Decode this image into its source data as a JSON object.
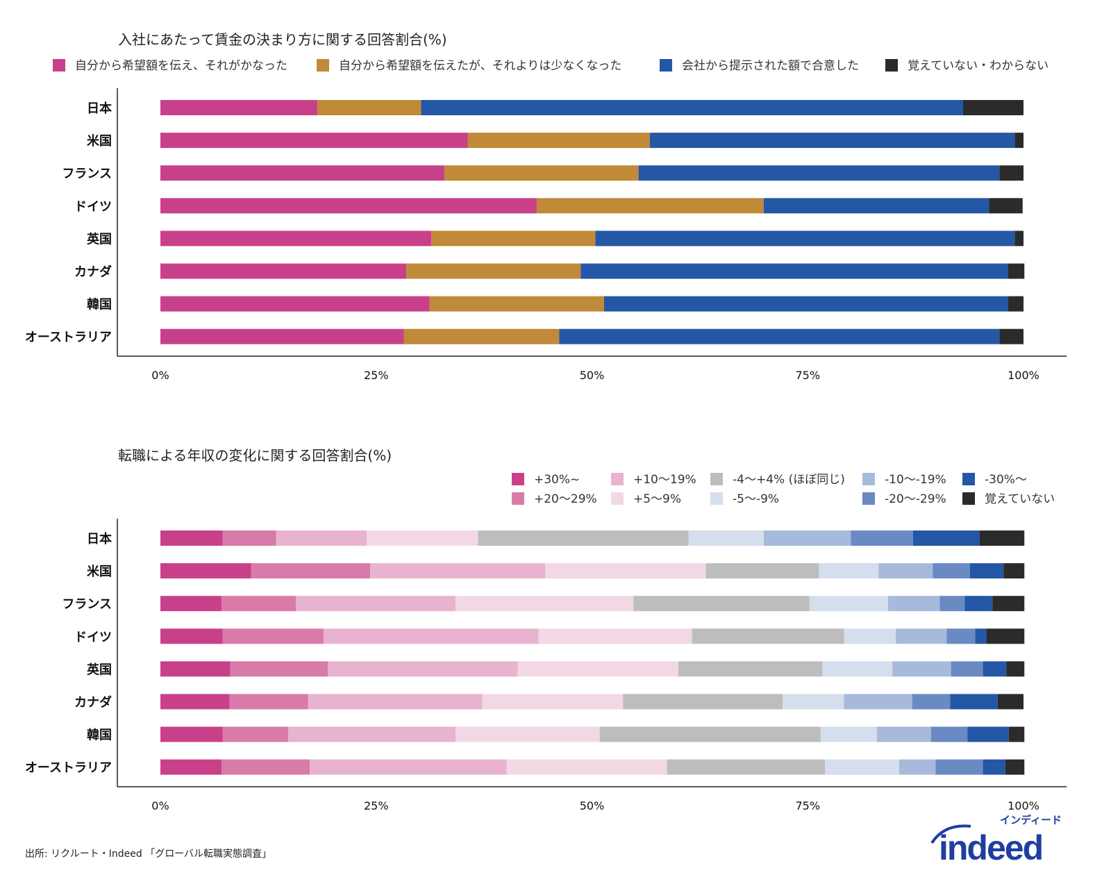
{
  "chart_data": [
    {
      "type": "bar",
      "orientation": "horizontal",
      "stacked": true,
      "title": "入社にあたって賃金の決まり方に関する回答割合(%)",
      "categories": [
        "日本",
        "米国",
        "フランス",
        "ドイツ",
        "英国",
        "カナダ",
        "韓国",
        "オーストラリア"
      ],
      "xlim": [
        0,
        100
      ],
      "x_ticks": [
        "0%",
        "25%",
        "50%",
        "75%",
        "100%"
      ],
      "legend_position": "top",
      "grid": false,
      "series": [
        {
          "name": "自分から希望額を伝え、それがかなった",
          "color": "#C9408A",
          "values": [
            18.2,
            35.6,
            32.9,
            43.6,
            31.4,
            28.5,
            31.2,
            28.2
          ]
        },
        {
          "name": "自分から希望額を伝えたが、それよりは少なくなった",
          "color": "#C08A38",
          "values": [
            12.0,
            21.1,
            22.5,
            26.3,
            19.0,
            20.2,
            20.2,
            18.0
          ]
        },
        {
          "name": "会社から提示された額で合意した",
          "color": "#2457A6",
          "values": [
            62.8,
            42.3,
            41.8,
            26.1,
            48.6,
            49.5,
            46.8,
            51.0
          ]
        },
        {
          "name": "覚えていない・わからない",
          "color": "#2B2B2B",
          "values": [
            7.0,
            1.0,
            2.8,
            3.9,
            1.0,
            1.9,
            1.8,
            2.8
          ]
        }
      ]
    },
    {
      "type": "bar",
      "orientation": "horizontal",
      "stacked": true,
      "title": "転職による年収の変化に関する回答割合(%)",
      "categories": [
        "日本",
        "米国",
        "フランス",
        "ドイツ",
        "英国",
        "カナダ",
        "韓国",
        "オーストラリア"
      ],
      "xlim": [
        0,
        100
      ],
      "x_ticks": [
        "0%",
        "25%",
        "50%",
        "75%",
        "100%"
      ],
      "legend_position": "top-right",
      "grid": false,
      "series": [
        {
          "name": "+30%~",
          "color": "#C9408A",
          "values": [
            7.2,
            10.5,
            7.1,
            7.2,
            8.1,
            8.0,
            7.2,
            7.1
          ]
        },
        {
          "name": "+20〜29%",
          "color": "#D87BA9",
          "values": [
            6.2,
            13.8,
            8.6,
            11.7,
            11.3,
            9.1,
            7.6,
            10.2
          ]
        },
        {
          "name": "+10〜19%",
          "color": "#E8B3CF",
          "values": [
            10.5,
            20.3,
            18.5,
            24.9,
            22.0,
            20.2,
            19.4,
            22.8
          ]
        },
        {
          "name": "+5〜9%",
          "color": "#F2D8E5",
          "values": [
            12.9,
            18.6,
            20.6,
            17.8,
            18.6,
            16.3,
            16.7,
            18.6
          ]
        },
        {
          "name": "-4〜+4% (ほぼ同じ)",
          "color": "#BDBDBD",
          "values": [
            24.4,
            13.1,
            20.4,
            17.6,
            16.7,
            18.5,
            25.6,
            18.3
          ]
        },
        {
          "name": "-5〜-9%",
          "color": "#D5DEEC",
          "values": [
            8.7,
            6.9,
            9.1,
            6.0,
            8.1,
            7.1,
            6.5,
            8.6
          ]
        },
        {
          "name": "-10〜-19%",
          "color": "#A7BADB",
          "values": [
            10.1,
            6.3,
            6.0,
            5.9,
            6.8,
            7.9,
            6.3,
            4.2
          ]
        },
        {
          "name": "-20〜-29%",
          "color": "#6A8AC4",
          "values": [
            7.2,
            4.3,
            2.9,
            3.3,
            3.7,
            4.4,
            4.2,
            5.5
          ]
        },
        {
          "name": "-30%〜",
          "color": "#2457A6",
          "values": [
            7.7,
            3.9,
            3.2,
            1.3,
            2.7,
            5.5,
            4.8,
            2.6
          ]
        },
        {
          "name": "覚えていない",
          "color": "#2B2B2B",
          "values": [
            5.2,
            2.4,
            3.7,
            4.4,
            2.1,
            3.0,
            1.8,
            2.2
          ]
        }
      ]
    }
  ],
  "footer": {
    "source": "出所: リクルート・Indeed 「グローバル転職実態調査」",
    "logo_text": "indeed",
    "logo_kana": "インディード"
  }
}
